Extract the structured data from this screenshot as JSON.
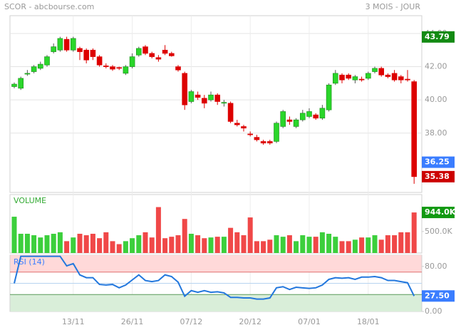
{
  "chart_data": [
    {
      "type": "candlestick",
      "title": "SCOR - abcbourse.com",
      "subtitle": "3 MOIS - JOUR",
      "categories": [
        null,
        null,
        null,
        null,
        null,
        null,
        null,
        null,
        null,
        "13/11",
        null,
        null,
        null,
        null,
        null,
        null,
        null,
        null,
        "26/11",
        null,
        null,
        null,
        null,
        null,
        null,
        null,
        null,
        "07/12",
        null,
        null,
        null,
        null,
        null,
        null,
        null,
        null,
        "20/12",
        null,
        null,
        null,
        null,
        null,
        null,
        null,
        null,
        "07/01",
        null,
        null,
        null,
        null,
        null,
        null,
        null,
        null,
        "18/01",
        null,
        null,
        null,
        null,
        null,
        null,
        null
      ],
      "open": [
        40.8,
        40.7,
        41.55,
        41.7,
        41.9,
        42.1,
        42.9,
        43.0,
        43.65,
        43.0,
        43.1,
        43.0,
        43.0,
        42.6,
        42.05,
        42.0,
        41.95,
        41.6,
        42.0,
        42.7,
        43.2,
        42.8,
        42.55,
        43.0,
        42.8,
        42.0,
        41.6,
        39.9,
        40.3,
        40.1,
        40.0,
        40.3,
        39.8,
        39.8,
        38.6,
        38.4,
        37.95,
        37.75,
        37.5,
        37.5,
        37.5,
        38.4,
        38.8,
        38.4,
        38.8,
        39.0,
        39.1,
        38.9,
        39.4,
        41.0,
        41.5,
        41.5,
        41.2,
        41.25,
        41.3,
        41.7,
        41.9,
        41.5,
        41.6,
        41.4,
        41.25,
        41.1
      ],
      "high": [
        41.05,
        41.4,
        41.8,
        42.1,
        42.3,
        42.7,
        43.4,
        43.8,
        43.8,
        43.8,
        43.2,
        43.1,
        43.1,
        42.7,
        42.2,
        42.1,
        42.0,
        42.1,
        42.8,
        43.2,
        43.3,
        42.9,
        42.7,
        43.3,
        42.9,
        42.1,
        41.7,
        40.6,
        40.5,
        40.3,
        40.5,
        40.4,
        40.0,
        39.9,
        38.8,
        38.5,
        38.1,
        37.9,
        37.6,
        37.6,
        38.7,
        39.4,
        39.0,
        38.9,
        39.4,
        39.5,
        39.2,
        39.7,
        41.0,
        41.8,
        41.6,
        41.6,
        41.5,
        41.4,
        41.7,
        42.0,
        42.0,
        41.6,
        41.8,
        41.5,
        41.8,
        41.2
      ],
      "low": [
        40.7,
        40.6,
        41.45,
        41.6,
        41.8,
        42.0,
        42.8,
        42.9,
        42.9,
        42.9,
        42.4,
        42.2,
        42.4,
        42.0,
        41.9,
        41.75,
        41.8,
        41.5,
        41.9,
        42.6,
        42.7,
        42.5,
        42.3,
        42.7,
        42.6,
        41.7,
        39.4,
        39.8,
        40.0,
        39.5,
        39.9,
        39.7,
        39.6,
        38.6,
        38.4,
        38.1,
        37.8,
        37.5,
        37.3,
        37.3,
        37.4,
        38.3,
        38.5,
        38.3,
        38.7,
        38.9,
        38.8,
        38.8,
        39.3,
        40.9,
        41.0,
        41.2,
        41.0,
        41.1,
        41.2,
        41.6,
        41.4,
        41.3,
        41.1,
        41.0,
        41.1,
        34.95
      ],
      "close": [
        40.95,
        41.3,
        41.6,
        42.0,
        42.15,
        42.6,
        43.2,
        43.7,
        43.0,
        43.7,
        42.9,
        42.4,
        42.6,
        42.1,
        42.0,
        41.85,
        41.9,
        42.0,
        42.6,
        43.1,
        42.8,
        42.6,
        42.45,
        42.8,
        42.65,
        41.8,
        39.7,
        40.5,
        40.15,
        39.8,
        40.3,
        39.9,
        39.85,
        38.7,
        38.5,
        38.3,
        37.9,
        37.6,
        37.4,
        37.4,
        38.6,
        39.3,
        38.7,
        38.8,
        39.2,
        39.3,
        38.9,
        39.5,
        40.9,
        41.6,
        41.2,
        41.3,
        41.4,
        41.2,
        41.6,
        41.9,
        41.5,
        41.4,
        41.2,
        41.2,
        41.2,
        35.38
      ],
      "up_color": "#2ad62a",
      "down_color": "#dd0000",
      "ylim": [
        34.43,
        45.07
      ],
      "yticks": [
        {
          "value": 38,
          "label": "38.00"
        },
        {
          "value": 40,
          "label": "40.00"
        },
        {
          "value": 42,
          "label": "42.00"
        },
        {
          "value": 44,
          "label": "44.00"
        }
      ],
      "grid": true,
      "markers": [
        {
          "value": 43.79,
          "color": "#138a13"
        },
        {
          "value": 36.25,
          "color": "#3a7dff"
        },
        {
          "value": 35.38,
          "color": "#cc0000"
        }
      ]
    },
    {
      "type": "bar",
      "title": "VOLUME",
      "values": [
        845000,
        448000,
        448000,
        414000,
        362000,
        414000,
        448000,
        483000,
        276000,
        362000,
        448000,
        414000,
        448000,
        345000,
        483000,
        276000,
        207000,
        276000,
        345000,
        414000,
        483000,
        362000,
        1069000,
        345000,
        379000,
        414000,
        793000,
        448000,
        414000,
        345000,
        362000,
        379000,
        379000,
        586000,
        483000,
        414000,
        828000,
        276000,
        276000,
        310000,
        414000,
        379000,
        414000,
        276000,
        414000,
        379000,
        379000,
        483000,
        448000,
        379000,
        276000,
        276000,
        310000,
        362000,
        362000,
        414000,
        310000,
        414000,
        414000,
        483000,
        483000,
        944000
      ],
      "up_color": "#3ccf3c",
      "down_color": "#f04848",
      "ylim": [
        0,
        1360000
      ],
      "yticks": [
        {
          "value": 500000,
          "label": "500.0K"
        }
      ],
      "markers": [
        {
          "value": 944000,
          "label": "944.0K",
          "color": "#119911"
        }
      ]
    },
    {
      "type": "line",
      "title": "RSI (14)",
      "color": "#2277dd",
      "values": [
        50,
        98,
        98,
        98,
        98,
        98,
        98,
        98,
        81,
        85,
        65,
        60,
        60,
        48,
        47,
        48,
        42,
        47,
        56,
        65,
        55,
        53,
        55,
        65,
        62,
        52,
        27,
        37,
        34,
        37,
        34,
        35,
        33,
        25,
        25,
        24,
        24,
        22,
        22,
        24,
        42,
        44,
        39,
        43,
        42,
        41,
        42,
        47,
        57,
        60,
        59,
        60,
        57,
        61,
        61,
        62,
        60,
        55,
        55,
        53,
        51,
        27.5
      ],
      "ylim": [
        0,
        100
      ],
      "yticks": [
        {
          "value": 80,
          "label": "80.00"
        },
        {
          "value": 0,
          "label": "0.00"
        }
      ],
      "bands": [
        {
          "from": 70,
          "to": 100,
          "color": "#ffd9d9",
          "line": "#e07070"
        },
        {
          "from": 0,
          "to": 30,
          "color": "#d9eed9",
          "line": "#5a9a5a"
        }
      ],
      "markers": [
        {
          "value": 27.5,
          "label": "27.50",
          "color": "#3a7dff"
        }
      ]
    }
  ]
}
